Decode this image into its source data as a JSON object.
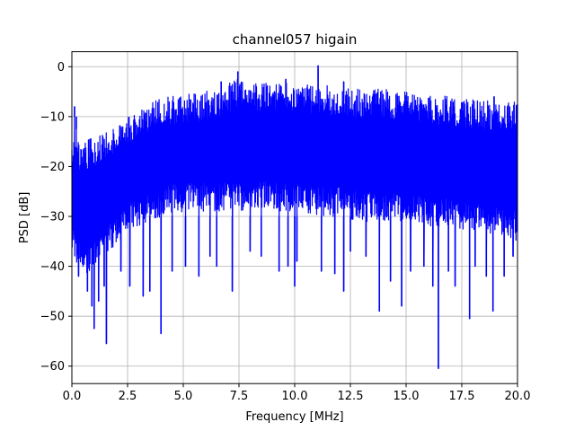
{
  "chart_data": {
    "type": "line",
    "title": "channel057 higain",
    "xlabel": "Frequency [MHz]",
    "ylabel": "PSD [dB]",
    "xlim": [
      0,
      20
    ],
    "ylim": [
      -63.5,
      3
    ],
    "x_ticks": [
      0.0,
      2.5,
      5.0,
      7.5,
      10.0,
      12.5,
      15.0,
      17.5,
      20.0
    ],
    "x_tick_labels": [
      "0.0",
      "2.5",
      "5.0",
      "7.5",
      "10.0",
      "12.5",
      "15.0",
      "17.5",
      "20.0"
    ],
    "y_ticks": [
      0,
      -10,
      -20,
      -30,
      -40,
      -50,
      -60
    ],
    "y_tick_labels": [
      "0",
      "−10",
      "−20",
      "−30",
      "−40",
      "−50",
      "−60"
    ],
    "grid": true,
    "series_color": "#0000ff",
    "envelope": {
      "x": [
        0,
        0.5,
        1,
        1.5,
        2,
        2.5,
        3,
        4,
        5,
        6,
        7,
        7.5,
        8,
        9,
        10,
        11,
        12,
        13,
        14,
        15,
        16,
        17,
        18,
        19,
        20
      ],
      "upper": [
        -15,
        -15,
        -14,
        -13,
        -12,
        -10,
        -8,
        -6,
        -5.5,
        -5,
        -3.5,
        -2,
        -3,
        -3,
        -3.5,
        -3.5,
        -4,
        -4.5,
        -4.5,
        -5,
        -5.5,
        -6,
        -6.5,
        -7,
        -7
      ],
      "lower": [
        -38,
        -42,
        -40,
        -38,
        -36,
        -33,
        -32,
        -30,
        -29,
        -29,
        -29,
        -29,
        -29,
        -29,
        -29,
        -30,
        -30,
        -31,
        -31,
        -31,
        -32,
        -32,
        -33,
        -34,
        -35
      ]
    },
    "peaks": [
      {
        "x": 0.12,
        "y": -8
      },
      {
        "x": 0.2,
        "y": -12.5
      },
      {
        "x": 7.45,
        "y": -1
      },
      {
        "x": 6.7,
        "y": -3
      },
      {
        "x": 9.6,
        "y": -2.5
      },
      {
        "x": 11.05,
        "y": 0.2
      },
      {
        "x": 12.2,
        "y": -3
      },
      {
        "x": 18.95,
        "y": -6
      }
    ],
    "dips": [
      {
        "x": 0.3,
        "y": -42
      },
      {
        "x": 0.7,
        "y": -45
      },
      {
        "x": 0.9,
        "y": -48
      },
      {
        "x": 1.0,
        "y": -52.5
      },
      {
        "x": 1.2,
        "y": -47
      },
      {
        "x": 1.45,
        "y": -44
      },
      {
        "x": 1.55,
        "y": -55.5
      },
      {
        "x": 2.2,
        "y": -41
      },
      {
        "x": 2.6,
        "y": -44
      },
      {
        "x": 3.2,
        "y": -46
      },
      {
        "x": 3.5,
        "y": -45
      },
      {
        "x": 4.0,
        "y": -53.5
      },
      {
        "x": 4.5,
        "y": -41
      },
      {
        "x": 5.1,
        "y": -40
      },
      {
        "x": 5.7,
        "y": -42
      },
      {
        "x": 6.2,
        "y": -38
      },
      {
        "x": 6.5,
        "y": -40
      },
      {
        "x": 7.2,
        "y": -45
      },
      {
        "x": 8.0,
        "y": -37
      },
      {
        "x": 8.5,
        "y": -38
      },
      {
        "x": 9.3,
        "y": -41
      },
      {
        "x": 9.7,
        "y": -40
      },
      {
        "x": 10.0,
        "y": -44
      },
      {
        "x": 10.1,
        "y": -39
      },
      {
        "x": 11.2,
        "y": -41
      },
      {
        "x": 11.8,
        "y": -41.5
      },
      {
        "x": 12.2,
        "y": -45
      },
      {
        "x": 12.5,
        "y": -37
      },
      {
        "x": 13.2,
        "y": -38
      },
      {
        "x": 13.8,
        "y": -49
      },
      {
        "x": 14.3,
        "y": -43
      },
      {
        "x": 14.8,
        "y": -48
      },
      {
        "x": 15.2,
        "y": -41
      },
      {
        "x": 15.8,
        "y": -40
      },
      {
        "x": 16.2,
        "y": -44
      },
      {
        "x": 16.45,
        "y": -60.5
      },
      {
        "x": 16.9,
        "y": -41
      },
      {
        "x": 17.2,
        "y": -44
      },
      {
        "x": 17.85,
        "y": -50.5
      },
      {
        "x": 18.1,
        "y": -40
      },
      {
        "x": 18.6,
        "y": -42
      },
      {
        "x": 18.9,
        "y": -49
      },
      {
        "x": 19.4,
        "y": -42
      },
      {
        "x": 19.8,
        "y": -38
      }
    ]
  }
}
